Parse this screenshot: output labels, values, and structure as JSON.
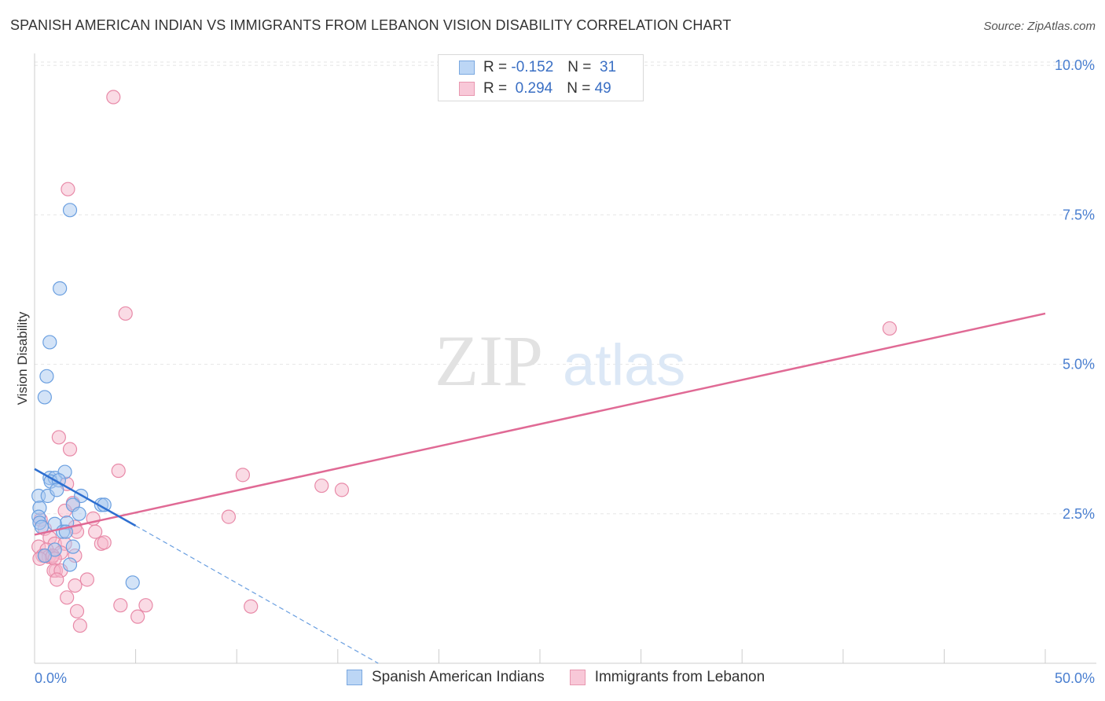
{
  "title": "SPANISH AMERICAN INDIAN VS IMMIGRANTS FROM LEBANON VISION DISABILITY CORRELATION CHART",
  "source": "Source: ZipAtlas.com",
  "watermark": {
    "zip": "ZIP",
    "atlas": "atlas"
  },
  "legend": {
    "series1": {
      "r_label": "R =",
      "r_value": "-0.152",
      "n_label": "N =",
      "n_value": "31"
    },
    "series2": {
      "r_label": "R =",
      "r_value": "0.294",
      "n_label": "N =",
      "n_value": "49"
    }
  },
  "colors": {
    "blue_fill": "#a8c8f0",
    "blue_stroke": "#6a9fe0",
    "blue_line": "#2e6fd0",
    "pink_fill": "#f6b8cc",
    "pink_stroke": "#e88aa8",
    "pink_line": "#e06a95",
    "grid": "#e6e6e6",
    "tick_text": "#4a7fd0"
  },
  "chart_data": {
    "type": "scatter",
    "title": "SPANISH AMERICAN INDIAN VS IMMIGRANTS FROM LEBANON VISION DISABILITY CORRELATION CHART",
    "xlabel": "",
    "ylabel": "Vision Disability",
    "xlim": [
      0,
      50
    ],
    "ylim": [
      0,
      10.2
    ],
    "x_tick_labels": [
      "0.0%",
      "50.0%"
    ],
    "y_ticks": [
      2.5,
      5.0,
      7.5,
      10.0
    ],
    "y_tick_labels": [
      "2.5%",
      "5.0%",
      "7.5%",
      "10.0%"
    ],
    "grid": true,
    "series": [
      {
        "name": "Spanish American Indians",
        "color": "#a8c8f0",
        "points": [
          [
            1.75,
            7.58
          ],
          [
            1.25,
            6.27
          ],
          [
            0.75,
            5.37
          ],
          [
            0.6,
            4.8
          ],
          [
            0.5,
            4.45
          ],
          [
            0.75,
            3.1
          ],
          [
            1.0,
            3.1
          ],
          [
            1.5,
            3.2
          ],
          [
            0.8,
            3.04
          ],
          [
            1.2,
            3.06
          ],
          [
            0.2,
            2.8
          ],
          [
            0.65,
            2.8
          ],
          [
            1.1,
            2.9
          ],
          [
            2.3,
            2.8
          ],
          [
            1.9,
            2.65
          ],
          [
            3.3,
            2.65
          ],
          [
            3.45,
            2.65
          ],
          [
            0.25,
            2.6
          ],
          [
            0.2,
            2.45
          ],
          [
            0.25,
            2.35
          ],
          [
            0.35,
            2.28
          ],
          [
            1.6,
            2.35
          ],
          [
            1.0,
            2.33
          ],
          [
            2.2,
            2.5
          ],
          [
            1.4,
            2.2
          ],
          [
            1.55,
            2.2
          ],
          [
            1.0,
            1.9
          ],
          [
            1.9,
            1.95
          ],
          [
            0.5,
            1.8
          ],
          [
            1.75,
            1.65
          ],
          [
            4.85,
            1.35
          ]
        ],
        "trend": {
          "x": [
            0,
            5.0
          ],
          "y": [
            3.25,
            2.3
          ]
        },
        "trend_extension": {
          "x": [
            5.0,
            17.0
          ],
          "y": [
            2.3,
            0.0
          ]
        }
      },
      {
        "name": "Immigrants from Lebanon",
        "color": "#f6b8cc",
        "points": [
          [
            3.9,
            9.47
          ],
          [
            1.65,
            7.93
          ],
          [
            4.5,
            5.85
          ],
          [
            42.3,
            5.6
          ],
          [
            1.2,
            3.78
          ],
          [
            1.75,
            3.58
          ],
          [
            4.15,
            3.22
          ],
          [
            10.3,
            3.15
          ],
          [
            14.2,
            2.97
          ],
          [
            15.2,
            2.9
          ],
          [
            1.6,
            3.0
          ],
          [
            1.9,
            2.68
          ],
          [
            1.5,
            2.55
          ],
          [
            9.6,
            2.45
          ],
          [
            2.9,
            2.42
          ],
          [
            0.3,
            2.4
          ],
          [
            0.5,
            2.25
          ],
          [
            0.75,
            2.1
          ],
          [
            1.0,
            2.0
          ],
          [
            2.0,
            2.28
          ],
          [
            3.0,
            2.2
          ],
          [
            2.1,
            2.2
          ],
          [
            1.5,
            2.0
          ],
          [
            0.2,
            1.95
          ],
          [
            0.6,
            1.9
          ],
          [
            1.3,
            1.85
          ],
          [
            0.4,
            1.8
          ],
          [
            0.55,
            1.8
          ],
          [
            0.7,
            1.78
          ],
          [
            0.85,
            1.77
          ],
          [
            0.9,
            1.8
          ],
          [
            1.0,
            1.75
          ],
          [
            0.25,
            1.75
          ],
          [
            2.0,
            1.8
          ],
          [
            3.3,
            2.0
          ],
          [
            3.45,
            2.02
          ],
          [
            1.05,
            1.55
          ],
          [
            0.95,
            1.55
          ],
          [
            1.3,
            1.55
          ],
          [
            1.1,
            1.4
          ],
          [
            2.6,
            1.4
          ],
          [
            2.0,
            1.3
          ],
          [
            1.6,
            1.1
          ],
          [
            4.25,
            0.97
          ],
          [
            5.5,
            0.97
          ],
          [
            10.7,
            0.95
          ],
          [
            2.1,
            0.87
          ],
          [
            5.1,
            0.78
          ],
          [
            2.25,
            0.63
          ]
        ],
        "trend": {
          "x": [
            0,
            50
          ],
          "y": [
            2.15,
            5.85
          ]
        }
      }
    ]
  }
}
